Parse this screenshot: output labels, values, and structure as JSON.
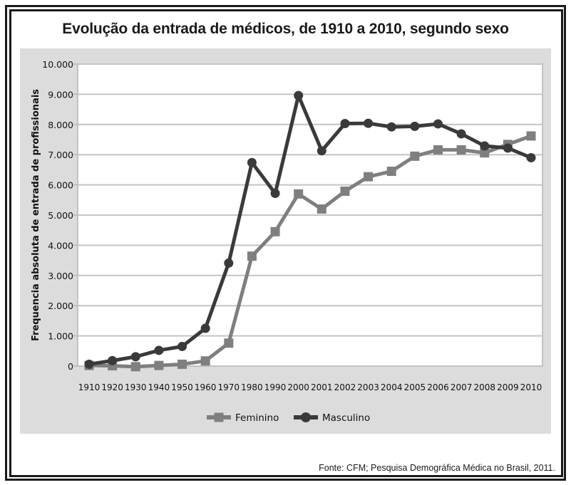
{
  "chart_data": {
    "type": "line",
    "title": "Evolução da entrada de médicos, de 1910 a 2010, segundo sexo",
    "xlabel": "",
    "ylabel": "Frequencia absoluta de entrada de profissionais",
    "categories": [
      "1910",
      "1920",
      "1930",
      "1940",
      "1950",
      "1960",
      "1970",
      "1980",
      "1990",
      "2000",
      "2001",
      "2002",
      "2003",
      "2004",
      "2005",
      "2006",
      "2007",
      "2008",
      "2009",
      "2010"
    ],
    "ylim": [
      0,
      10000
    ],
    "yticks": [
      0,
      1000,
      2000,
      3000,
      4000,
      5000,
      6000,
      7000,
      8000,
      9000,
      10000
    ],
    "ytick_labels": [
      "0",
      "1.000",
      "2.000",
      "3.000",
      "4.000",
      "5.000",
      "6.000",
      "7.000",
      "8.000",
      "9.000",
      "10.000"
    ],
    "grid": true,
    "legend_position": "bottom",
    "series": [
      {
        "name": "Feminino",
        "color": "#7f7f7f",
        "marker": "square",
        "values": [
          20,
          10,
          -20,
          20,
          60,
          170,
          760,
          3640,
          4450,
          5700,
          5200,
          5790,
          6270,
          6450,
          6950,
          7160,
          7160,
          7060,
          7340,
          7620
        ]
      },
      {
        "name": "Masculino",
        "color": "#3a3a3a",
        "marker": "circle",
        "values": [
          60,
          180,
          310,
          520,
          650,
          1250,
          3410,
          6740,
          5720,
          8960,
          7130,
          8030,
          8040,
          7920,
          7940,
          8020,
          7690,
          7290,
          7220,
          6900
        ]
      }
    ]
  },
  "source": "Fonte: CFM; Pesquisa Demográfica Médica no Brasil, 2011."
}
